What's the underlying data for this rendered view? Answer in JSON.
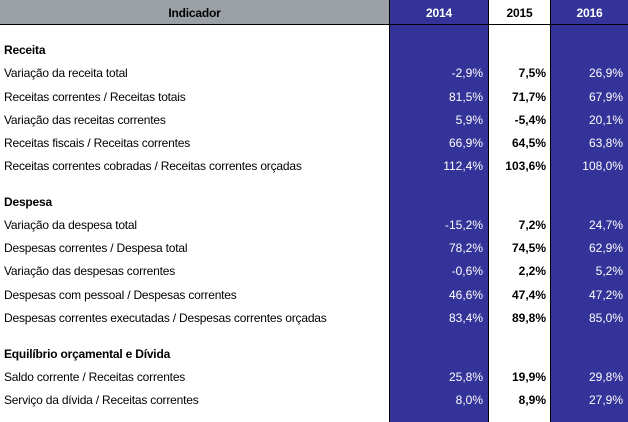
{
  "header": {
    "indicator": "Indicador",
    "y2014": "2014",
    "y2015": "2015",
    "y2016": "2016"
  },
  "rows": [
    {
      "type": "section",
      "label": "Receita"
    },
    {
      "type": "data",
      "label": "Variação da receita total",
      "v2014": "-2,9%",
      "v2015": "7,5%",
      "v2016": "26,9%"
    },
    {
      "type": "data",
      "label": "Receitas correntes / Receitas totais",
      "v2014": "81,5%",
      "v2015": "71,7%",
      "v2016": "67,9%"
    },
    {
      "type": "data",
      "label": "Variação das receitas correntes",
      "v2014": "5,9%",
      "v2015": "-5,4%",
      "v2016": "20,1%"
    },
    {
      "type": "data",
      "label": "Receitas fiscais / Receitas correntes",
      "v2014": "66,9%",
      "v2015": "64,5%",
      "v2016": "63,8%"
    },
    {
      "type": "data",
      "label": "Receitas correntes cobradas / Receitas correntes orçadas",
      "v2014": "112,4%",
      "v2015": "103,6%",
      "v2016": "108,0%"
    },
    {
      "type": "section",
      "label": "Despesa"
    },
    {
      "type": "data",
      "label": "Variação da despesa total",
      "v2014": "-15,2%",
      "v2015": "7,2%",
      "v2016": "24,7%"
    },
    {
      "type": "data",
      "label": "Despesas correntes / Despesa total",
      "v2014": "78,2%",
      "v2015": "74,5%",
      "v2016": "62,9%"
    },
    {
      "type": "data",
      "label": "Variação das despesas correntes",
      "v2014": "-0,6%",
      "v2015": "2,2%",
      "v2016": "5,2%"
    },
    {
      "type": "data",
      "label": "Despesas com pessoal  / Despesas correntes",
      "v2014": "46,6%",
      "v2015": "47,4%",
      "v2016": "47,2%"
    },
    {
      "type": "data",
      "label": "Despesas correntes executadas / Despesas correntes orçadas",
      "v2014": "83,4%",
      "v2015": "89,8%",
      "v2016": "85,0%"
    },
    {
      "type": "section",
      "label": "Equilíbrio orçamental e Dívida"
    },
    {
      "type": "data",
      "label": "Saldo corrente / Receitas correntes",
      "v2014": "25,8%",
      "v2015": "19,9%",
      "v2016": "29,8%"
    },
    {
      "type": "data",
      "label": "Serviço da dívida / Receitas correntes",
      "v2014": "8,0%",
      "v2015": "8,9%",
      "v2016": "27,9%"
    }
  ]
}
